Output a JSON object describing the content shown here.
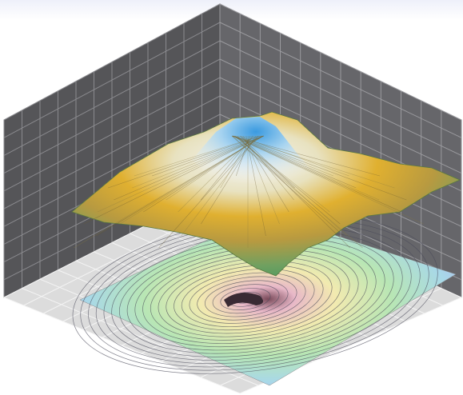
{
  "chart_data": {
    "type": "surface"
  }
}
